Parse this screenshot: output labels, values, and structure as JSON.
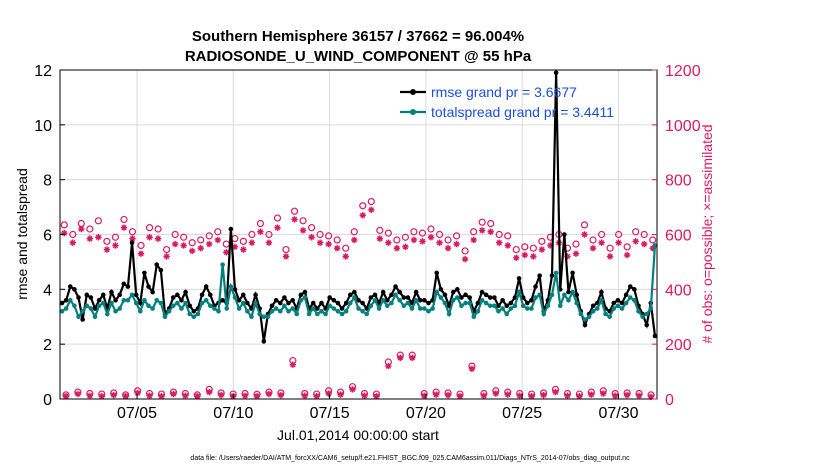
{
  "chart_data": {
    "type": "line",
    "title": "Southern Hemisphere 36157 / 37662 = 96.004%",
    "subtitle": "RADIOSONDE_U_WIND_COMPONENT @ 55 hPa",
    "xlabel": "Jul.01,2014 00:00:00 start",
    "ylabel": "rmse and totalspread",
    "ylabel_right": "# of obs: o=possible; ×=assimilated",
    "footer": "data file: /Users/raeder/DAI/ATM_forcXX/CAM6_setup/f.e21.FHIST_BGC.f09_025.CAM6assim.011/Diags_NTrS_2014-07/obs_diag_output.nc",
    "x_ticks": [
      {
        "label": "07/05",
        "day": 5
      },
      {
        "label": "07/10",
        "day": 10
      },
      {
        "label": "07/15",
        "day": 15
      },
      {
        "label": "07/20",
        "day": 20
      },
      {
        "label": "07/25",
        "day": 25
      },
      {
        "label": "07/30",
        "day": 30
      }
    ],
    "xlim": [
      1,
      32
    ],
    "ylim_left": [
      0,
      12
    ],
    "yticks_left": [
      "0",
      "2",
      "4",
      "6",
      "8",
      "10",
      "12"
    ],
    "ylim_right": [
      0,
      1200
    ],
    "yticks_right": [
      "0",
      "200",
      "400",
      "600",
      "800",
      "1000",
      "1200"
    ],
    "colors": {
      "rmse": "#000000",
      "spread": "#00807f",
      "obs": "#d81b60",
      "legend_text": "#1a4fd6"
    },
    "legend": {
      "placement": "top-right",
      "entries": [
        "rmse grand pr = 3.6677",
        "totalspread grand pr = 3.4411"
      ]
    },
    "grid": true,
    "series": [
      {
        "name": "rmse grand pr = 3.6677",
        "axis": "left",
        "values": [
          3.5,
          3.6,
          4.1,
          4.0,
          3.7,
          2.9,
          3.8,
          3.7,
          3.3,
          3.6,
          3.8,
          3.3,
          3.9,
          3.6,
          3.8,
          4.2,
          4.1,
          5.7,
          3.8,
          3.5,
          4.6,
          4.1,
          3.9,
          4.9,
          4.7,
          3.1,
          3.3,
          3.7,
          3.8,
          3.6,
          3.9,
          3.4,
          3.2,
          3.3,
          3.8,
          4.1,
          3.8,
          3.4,
          3.5,
          3.6,
          3.5,
          6.2,
          4.0,
          3.6,
          3.8,
          3.5,
          3.3,
          3.8,
          3.3,
          2.1,
          3.1,
          3.4,
          3.6,
          3.5,
          3.7,
          3.5,
          3.6,
          3.3,
          3.8,
          3.9,
          3.3,
          3.5,
          3.3,
          3.5,
          3.3,
          3.7,
          3.6,
          3.5,
          3.3,
          3.5,
          3.8,
          3.9,
          3.6,
          3.5,
          3.3,
          3.7,
          3.8,
          3.5,
          3.9,
          3.6,
          3.8,
          4.1,
          3.9,
          3.7,
          3.7,
          3.5,
          3.9,
          3.6,
          3.6,
          3.5,
          3.6,
          4.6,
          4.0,
          3.8,
          3.4,
          3.9,
          4.0,
          3.7,
          3.8,
          3.7,
          3.2,
          3.5,
          3.9,
          3.8,
          3.7,
          3.7,
          3.4,
          3.6,
          3.4,
          3.5,
          3.7,
          4.4,
          3.7,
          3.5,
          3.6,
          4.1,
          4.5,
          3.2,
          3.6,
          4.5,
          11.9,
          4.0,
          6.0,
          3.9,
          4.6,
          3.8,
          3.2,
          2.7,
          3.1,
          3.4,
          3.5,
          3.9,
          3.3,
          3.2,
          3.5,
          3.6,
          3.5,
          3.8,
          4.1,
          4.0,
          3.4,
          3.1,
          2.7,
          3.5,
          2.3
        ]
      },
      {
        "name": "totalspread grand pr = 3.4411",
        "axis": "left",
        "values": [
          3.2,
          3.3,
          3.6,
          3.4,
          3.0,
          3.2,
          3.4,
          3.3,
          3.0,
          3.4,
          3.5,
          3.1,
          3.5,
          3.2,
          3.3,
          3.6,
          3.6,
          3.8,
          3.5,
          3.2,
          3.6,
          3.4,
          3.3,
          3.6,
          3.5,
          3.0,
          3.2,
          3.4,
          3.5,
          3.3,
          3.5,
          3.1,
          3.0,
          3.1,
          3.5,
          3.6,
          3.4,
          3.3,
          3.2,
          4.9,
          3.3,
          4.1,
          3.7,
          3.3,
          3.5,
          3.2,
          3.0,
          3.5,
          3.1,
          3.0,
          3.0,
          3.2,
          3.3,
          3.2,
          3.4,
          3.2,
          3.3,
          3.1,
          3.6,
          3.7,
          3.1,
          3.3,
          3.1,
          3.2,
          3.1,
          3.4,
          3.3,
          3.2,
          3.1,
          3.2,
          3.5,
          3.7,
          3.3,
          3.2,
          3.1,
          3.4,
          3.6,
          3.3,
          3.6,
          3.4,
          3.5,
          3.8,
          3.6,
          3.4,
          3.5,
          3.3,
          3.6,
          3.3,
          3.3,
          3.2,
          3.3,
          3.9,
          3.7,
          3.5,
          3.1,
          3.6,
          3.7,
          3.4,
          3.5,
          3.5,
          3.0,
          3.2,
          3.6,
          3.5,
          3.4,
          3.4,
          3.2,
          3.3,
          3.1,
          3.3,
          3.4,
          3.9,
          3.4,
          3.3,
          3.3,
          3.7,
          3.8,
          3.1,
          3.4,
          3.8,
          4.6,
          3.4,
          3.8,
          3.6,
          3.9,
          3.5,
          3.1,
          2.9,
          3.0,
          3.2,
          3.3,
          3.6,
          3.1,
          3.0,
          3.3,
          3.4,
          3.3,
          3.5,
          3.7,
          3.6,
          3.2,
          3.0,
          3.1,
          3.3,
          5.6
        ]
      }
    ],
    "obs_possible_high": [
      635,
      600,
      640,
      620,
      650,
      575,
      590,
      655,
      610,
      560,
      625,
      620,
      545,
      600,
      590,
      570,
      580,
      595,
      610,
      565,
      585,
      575,
      600,
      640,
      600,
      660,
      545,
      685,
      650,
      625,
      600,
      595,
      580,
      550,
      610,
      705,
      720,
      615,
      605,
      580,
      590,
      610,
      605,
      620,
      600,
      580,
      595,
      540,
      610,
      645,
      640,
      600,
      595,
      545,
      555,
      550,
      575,
      590,
      600,
      550,
      565,
      635,
      580,
      600,
      550,
      600,
      555,
      610,
      600,
      580
    ],
    "obs_assim_high": [
      605,
      570,
      620,
      585,
      590,
      545,
      560,
      625,
      585,
      530,
      590,
      585,
      520,
      565,
      560,
      540,
      550,
      565,
      580,
      535,
      555,
      545,
      570,
      610,
      570,
      625,
      520,
      655,
      615,
      590,
      570,
      565,
      550,
      520,
      580,
      670,
      690,
      585,
      570,
      550,
      555,
      580,
      575,
      590,
      570,
      550,
      565,
      510,
      580,
      615,
      610,
      570,
      560,
      515,
      525,
      520,
      545,
      560,
      570,
      520,
      530,
      600,
      550,
      570,
      520,
      570,
      525,
      575,
      565,
      550
    ],
    "obs_possible_low": [
      15,
      25,
      20,
      18,
      22,
      15,
      30,
      20,
      18,
      25,
      20,
      15,
      35,
      22,
      18,
      20,
      17,
      25,
      22,
      140,
      20,
      18,
      30,
      25,
      45,
      20,
      18,
      135,
      160,
      160,
      20,
      25,
      22,
      18,
      120,
      20,
      30,
      25,
      20,
      18,
      22,
      35,
      20,
      18,
      25,
      30,
      20,
      22,
      20,
      15
    ],
    "obs_assim_low": [
      10,
      18,
      12,
      10,
      14,
      10,
      22,
      12,
      10,
      18,
      12,
      10,
      25,
      14,
      10,
      12,
      10,
      18,
      14,
      125,
      12,
      10,
      20,
      16,
      35,
      12,
      10,
      120,
      150,
      150,
      12,
      16,
      14,
      10,
      110,
      12,
      20,
      16,
      12,
      10,
      14,
      25,
      12,
      10,
      16,
      20,
      12,
      14,
      12,
      8
    ]
  }
}
